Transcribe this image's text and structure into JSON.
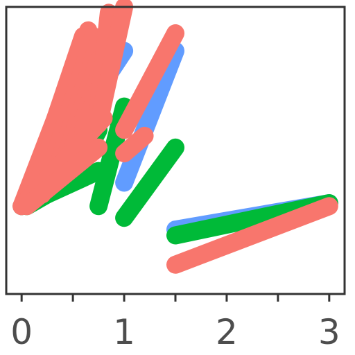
{
  "chart_data": {
    "type": "line",
    "title": "",
    "xlabel": "",
    "ylabel": "",
    "xlim": [
      -0.15,
      3.15
    ],
    "ylim": [
      -0.5,
      4.4
    ],
    "x_ticks": [
      0,
      1,
      2,
      3
    ],
    "x_tick_labels": [
      "0",
      "1",
      "2",
      "3"
    ],
    "x_minor_ticks": [
      0.5,
      1.5,
      2.5
    ],
    "y_axis_labels_shown": false,
    "grid": false,
    "legend": "none",
    "series": [
      {
        "color": "#619CFF",
        "segments": [
          {
            "x": [
              0,
              1
            ],
            "y": [
              1.0,
              3.65
            ]
          },
          {
            "x": [
              1,
              1.5
            ],
            "y": [
              1.4,
              3.65
            ]
          },
          {
            "x": [
              1.5,
              3
            ],
            "y": [
              0.6,
              1.05
            ]
          }
        ]
      },
      {
        "color": "#00BA38",
        "segments": [
          {
            "x": [
              0,
              0.75
            ],
            "y": [
              1.0,
              1.6
            ]
          },
          {
            "x": [
              0.05,
              0.3,
              0.6,
              0.75
            ],
            "y": [
              1.0,
              1.25,
              1.8,
              2.3
            ]
          },
          {
            "x": [
              0.75,
              1.0
            ],
            "y": [
              1.0,
              2.7
            ]
          },
          {
            "x": [
              1.0,
              1.5
            ],
            "y": [
              0.8,
              2.0
            ]
          },
          {
            "x": [
              1.5,
              3.0
            ],
            "y": [
              0.5,
              1.05
            ]
          }
        ]
      },
      {
        "color": "#F8766D",
        "segments": [
          {
            "x": [
              0.0,
              0.5
            ],
            "y": [
              1.0,
              3.0
            ]
          },
          {
            "x": [
              0.0,
              0.55
            ],
            "y": [
              1.0,
              3.5
            ]
          },
          {
            "x": [
              0.05,
              0.6
            ],
            "y": [
              1.05,
              3.9
            ]
          },
          {
            "x": [
              0.1,
              0.65
            ],
            "y": [
              1.1,
              4.0
            ]
          },
          {
            "x": [
              0.2,
              0.7
            ],
            "y": [
              1.2,
              3.9
            ]
          },
          {
            "x": [
              0.3,
              0.75
            ],
            "y": [
              1.4,
              3.8
            ]
          },
          {
            "x": [
              0.4,
              0.75
            ],
            "y": [
              1.7,
              3.5
            ]
          },
          {
            "x": [
              0.5,
              0.75
            ],
            "y": [
              2.0,
              3.2
            ]
          },
          {
            "x": [
              0.6,
              0.75
            ],
            "y": [
              2.3,
              3.0
            ]
          },
          {
            "x": [
              0.0,
              0.8
            ],
            "y": [
              1.0,
              2.5
            ]
          },
          {
            "x": [
              0.05,
              0.75
            ],
            "y": [
              1.0,
              2.0
            ]
          },
          {
            "x": [
              0.75,
              0.85
            ],
            "y": [
              2.7,
              4.3
            ]
          },
          {
            "x": [
              0.75,
              1.0
            ],
            "y": [
              2.4,
              4.4
            ]
          },
          {
            "x": [
              1.0,
              1.5
            ],
            "y": [
              2.3,
              3.95
            ]
          },
          {
            "x": [
              1.0,
              1.2
            ],
            "y": [
              1.9,
              2.2
            ]
          },
          {
            "x": [
              1.5,
              3.0
            ],
            "y": [
              0.0,
              1.0
            ]
          }
        ]
      }
    ]
  }
}
